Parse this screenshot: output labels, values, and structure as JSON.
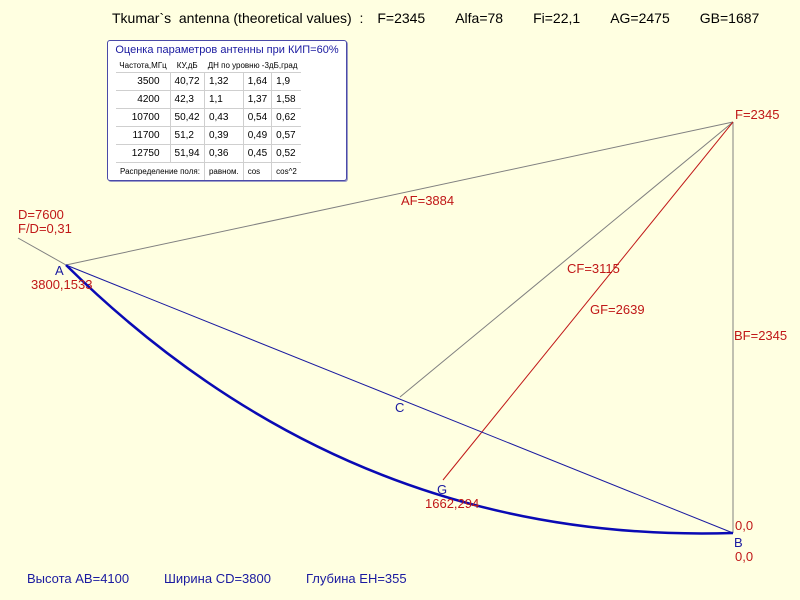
{
  "header": {
    "title": "Tkumar`s  antenna (theoretical values)  :",
    "f": "F=2345",
    "alfa": "Alfa=78",
    "fi": "Fi=22,1",
    "ag": "AG=2475",
    "gb": "GB=1687"
  },
  "panel": {
    "title": "Оценка параметров антенны при КИП=60%",
    "columns": [
      "Частота,МГц",
      "КУ,дБ",
      "ДН по уровню -3дБ,град"
    ],
    "rows": [
      [
        "3500",
        "40,72",
        "1,32",
        "1,64",
        "1,9"
      ],
      [
        "4200",
        "42,3",
        "1,1",
        "1,37",
        "1,58"
      ],
      [
        "10700",
        "50,42",
        "0,43",
        "0,54",
        "0,62"
      ],
      [
        "11700",
        "51,2",
        "0,39",
        "0,49",
        "0,57"
      ],
      [
        "12750",
        "51,94",
        "0,36",
        "0,45",
        "0,52"
      ]
    ],
    "distribution": [
      "Распределение поля:",
      "равном.",
      "cos",
      "cos^2"
    ]
  },
  "labels": {
    "d": "D=7600",
    "fd": "F/D=0,31",
    "a": "A",
    "a_coord": "3800,1533",
    "f_point": "F=2345",
    "af": "AF=3884",
    "cf": "CF=3115",
    "gf": "GF=2639",
    "bf": "BF=2345",
    "c": "C",
    "g": "G",
    "g_coord": "1662,294",
    "b": "B",
    "b_coord_top": "0,0",
    "b_coord_bottom": "0,0"
  },
  "footer": {
    "height": "Высота AB=4100",
    "width": "Ширина CD=3800",
    "depth": "Глубина EH=355"
  },
  "colors": {
    "background": "#ffffe1",
    "blue": "#1a1aa0",
    "red": "#c01818",
    "gray": "#808080"
  }
}
